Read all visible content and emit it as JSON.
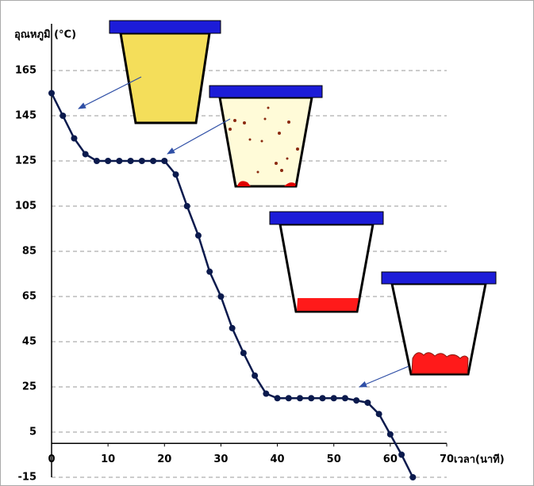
{
  "chart_data": {
    "type": "line",
    "y_label": "อุณหภูมิ (°C)",
    "x_label": "เวลา(นาที)",
    "x": [
      0,
      2,
      4,
      6,
      8,
      10,
      12,
      14,
      16,
      18,
      20,
      22,
      24,
      26,
      28,
      30,
      32,
      34,
      36,
      38,
      40,
      42,
      44,
      46,
      48,
      50,
      52,
      54,
      56,
      58,
      60,
      62,
      64
    ],
    "series": [
      {
        "color": "#0b1a4d",
        "values": [
          155,
          145,
          135,
          128,
          125,
          125,
          125,
          125,
          125,
          125,
          125,
          119,
          105,
          92,
          76,
          65,
          51,
          40,
          30,
          22,
          20,
          20,
          20,
          20,
          20,
          20,
          20,
          19,
          18,
          13,
          4,
          -5,
          -15
        ]
      }
    ],
    "xlim": [
      0,
      70
    ],
    "xticks": [
      0,
      10,
      20,
      30,
      40,
      50,
      60,
      70
    ],
    "ylim": [
      -15,
      165
    ],
    "yticks": [
      -15,
      5,
      25,
      45,
      65,
      85,
      105,
      125,
      145,
      165
    ],
    "grid": true
  }
}
